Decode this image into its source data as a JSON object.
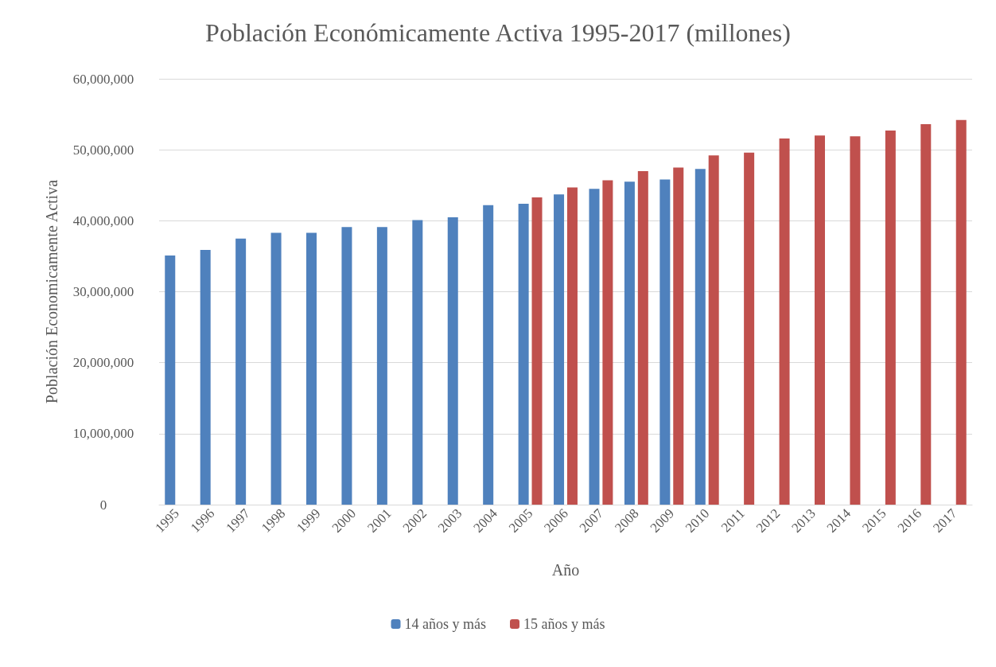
{
  "chart_data": {
    "type": "bar",
    "title": "Población Económicamente Activa 1995-2017 (millones)",
    "xlabel": "Año",
    "ylabel": "Población Economicamente Activa",
    "categories": [
      "1995",
      "1996",
      "1997",
      "1998",
      "1999",
      "2000",
      "2001",
      "2002",
      "2003",
      "2004",
      "2005",
      "2006",
      "2007",
      "2008",
      "2009",
      "2010",
      "2011",
      "2012",
      "2013",
      "2014",
      "2015",
      "2016",
      "2017"
    ],
    "series": [
      {
        "name": "14 años y más",
        "color": "#4f81bd",
        "values": [
          35100000,
          35900000,
          37500000,
          38300000,
          38300000,
          39100000,
          39100000,
          40100000,
          40500000,
          42200000,
          42400000,
          43700000,
          44500000,
          45500000,
          45800000,
          47300000,
          null,
          null,
          null,
          null,
          null,
          null,
          null
        ]
      },
      {
        "name": "15 años y más",
        "color": "#c0504d",
        "values": [
          null,
          null,
          null,
          null,
          null,
          null,
          null,
          null,
          null,
          null,
          43300000,
          44700000,
          45700000,
          47000000,
          47500000,
          49200000,
          49600000,
          51600000,
          52000000,
          51900000,
          52700000,
          53600000,
          54200000
        ]
      }
    ],
    "ylim": [
      0,
      60000000
    ],
    "yticks": [
      0,
      {
        "value": 10000000,
        "label": "10,000,000"
      },
      {
        "value": 20000000,
        "label": "20,000,000"
      },
      {
        "value": 30000000,
        "label": "30,000,000"
      },
      {
        "value": 40000000,
        "label": "40,000,000"
      },
      {
        "value": 50000000,
        "label": "50,000,000"
      },
      {
        "value": 60000000,
        "label": "60,000,000"
      }
    ],
    "grid": "y",
    "legend": "bottom"
  }
}
